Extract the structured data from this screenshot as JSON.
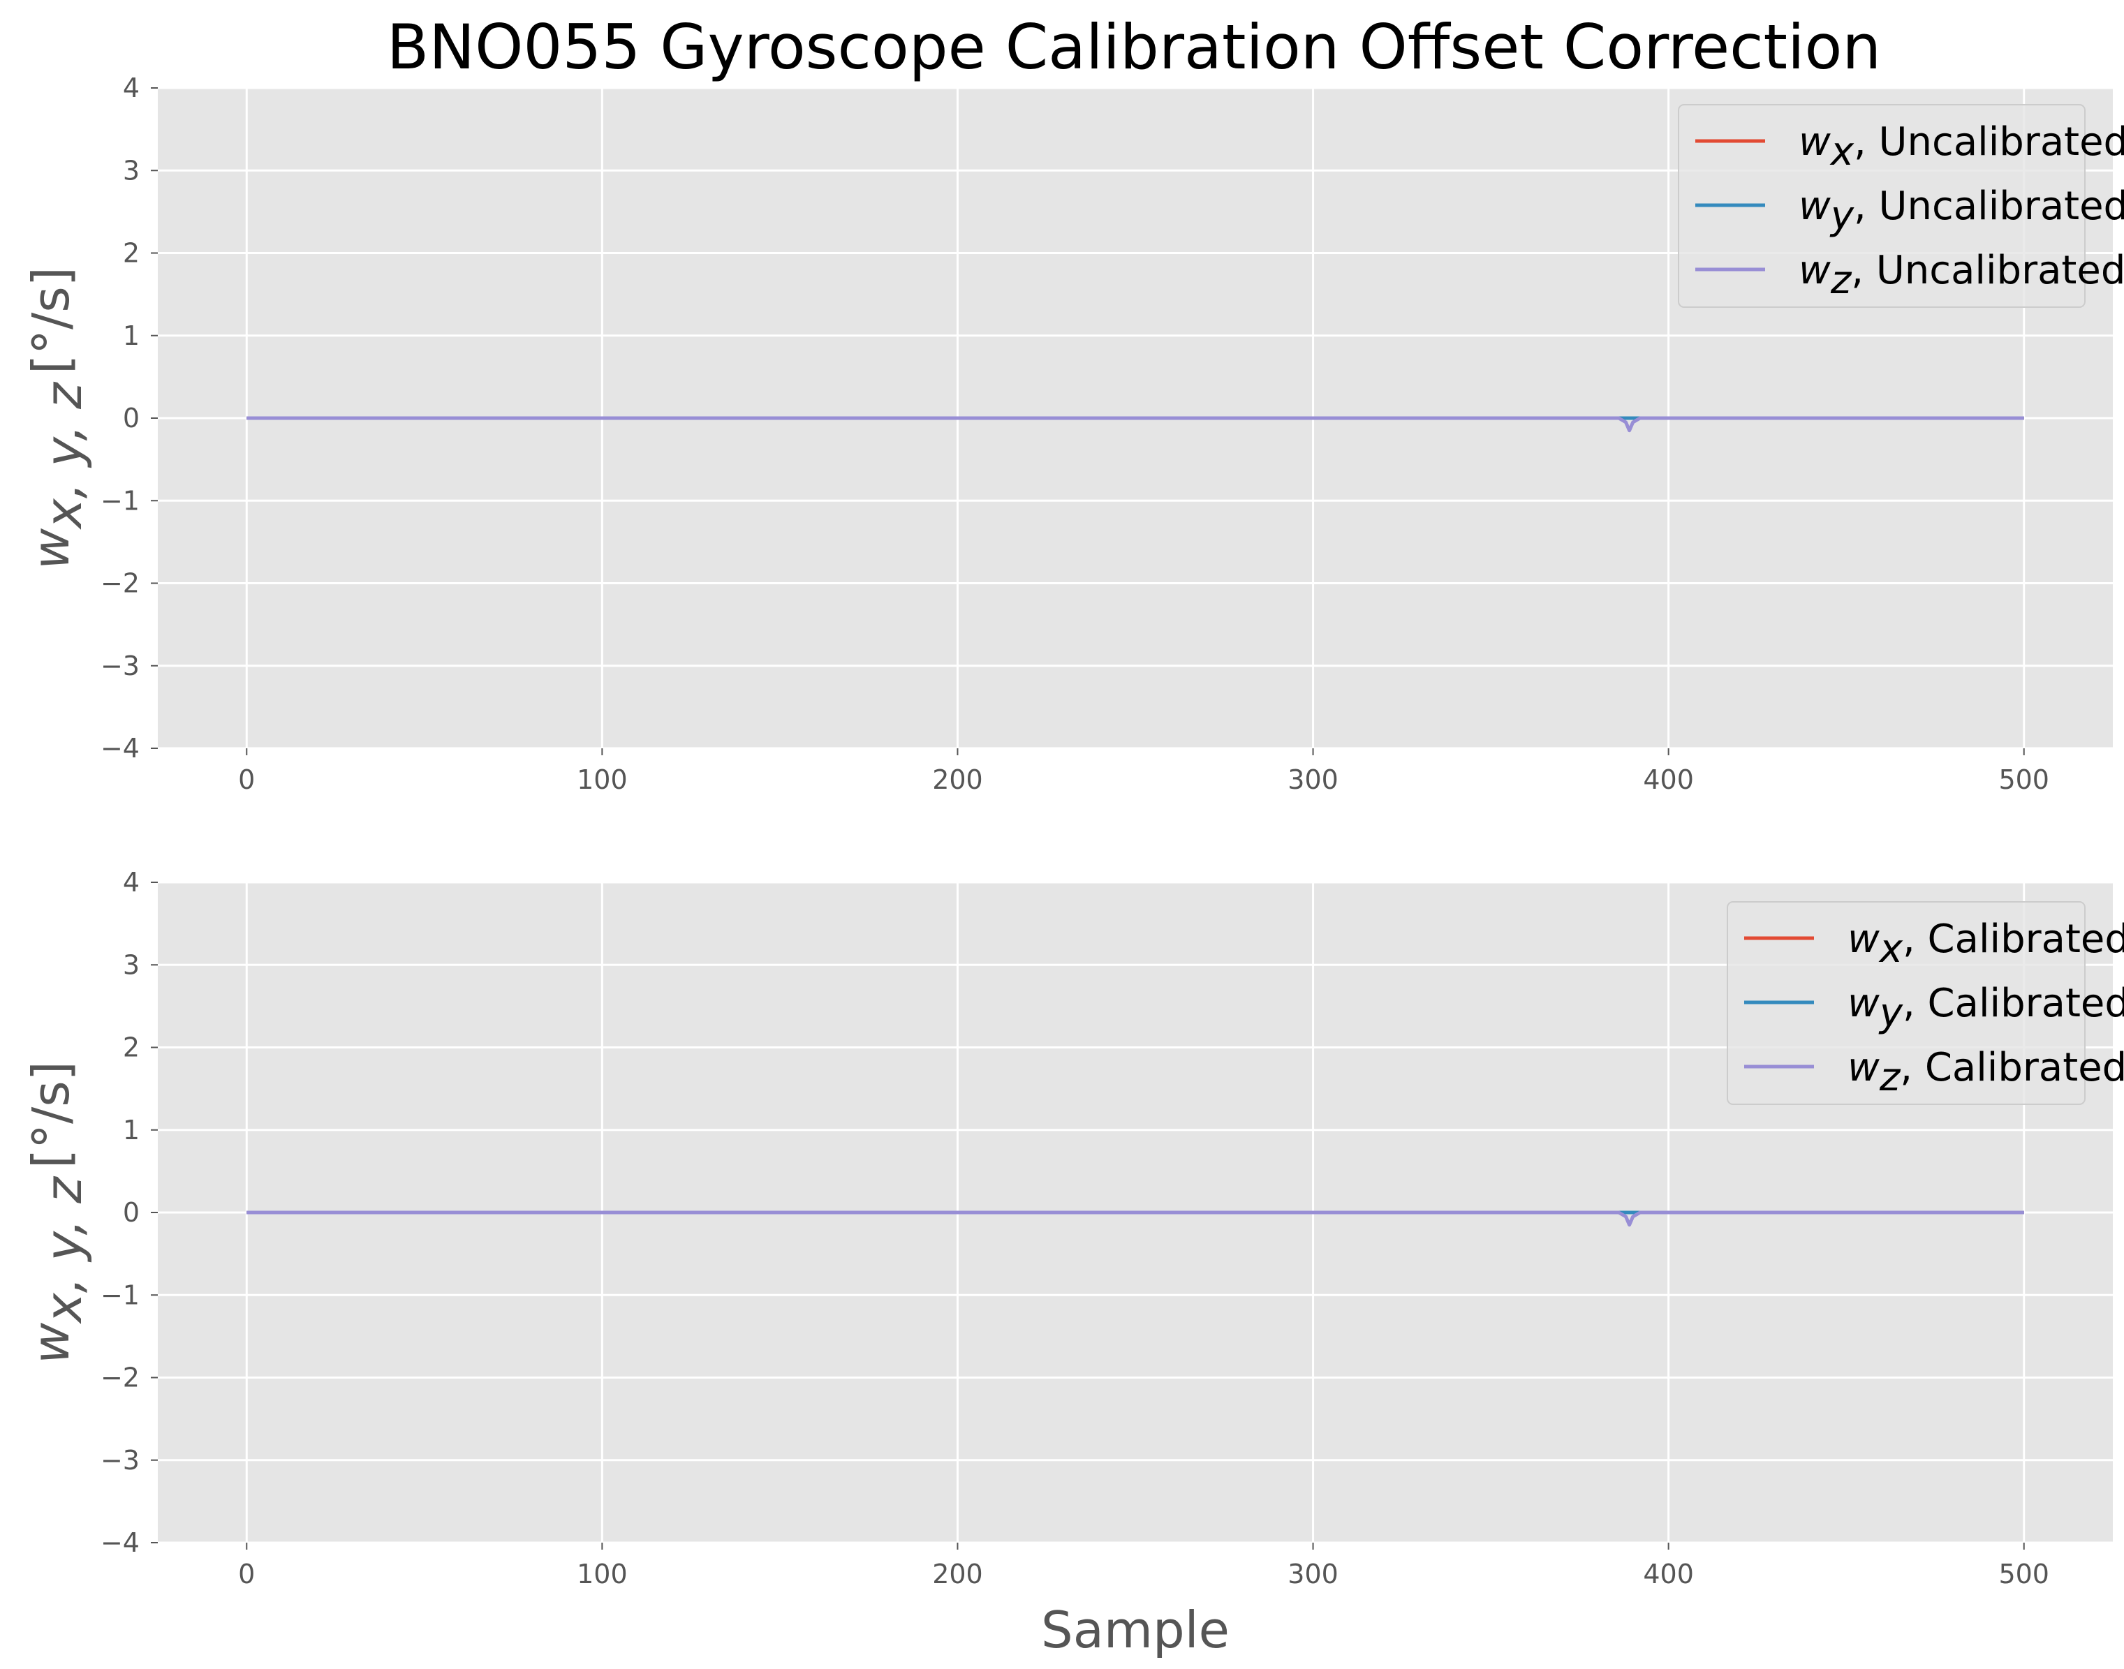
{
  "figure": {
    "title": "BNO055 Gyroscope Calibration Offset Correction"
  },
  "colors": {
    "wx": "#E24A33",
    "wy": "#348ABD",
    "wz": "#988ED5",
    "plot_bg": "#E5E5E5",
    "grid": "#FFFFFF",
    "tick_text": "#555555"
  },
  "chart_data": [
    {
      "type": "line",
      "title": "",
      "xlabel": "",
      "ylabel_base": "w",
      "ylabel_sub": "x, y, z",
      "ylabel_unit": "[°/s]",
      "xlim": [
        -25,
        525
      ],
      "ylim": [
        -4,
        4
      ],
      "xticks": [
        0,
        100,
        200,
        300,
        400,
        500
      ],
      "yticks": [
        -4,
        -3,
        -2,
        -1,
        0,
        1,
        2,
        3,
        4
      ],
      "ytick_labels": [
        "−4",
        "−3",
        "−2",
        "−1",
        "0",
        "1",
        "2",
        "3",
        "4"
      ],
      "grid": true,
      "legend_position": "top-right",
      "legend_name": "Uncalibrated",
      "series": [
        {
          "key": "wx",
          "sub": "x",
          "name": "Uncalibrated",
          "baseline": 0,
          "points": [
            [
              0,
              0
            ],
            [
              500,
              0
            ]
          ]
        },
        {
          "key": "wy",
          "sub": "y",
          "name": "Uncalibrated",
          "baseline": 0,
          "points": [
            [
              0,
              0
            ],
            [
              500,
              0
            ]
          ]
        },
        {
          "key": "wz",
          "sub": "z",
          "name": "Uncalibrated",
          "baseline": 0,
          "points": [
            [
              0,
              0
            ],
            [
              386,
              0
            ],
            [
              388,
              -0.05
            ],
            [
              389,
              -0.15
            ],
            [
              390,
              -0.05
            ],
            [
              392,
              0
            ],
            [
              500,
              0
            ]
          ]
        }
      ]
    },
    {
      "type": "line",
      "title": "",
      "xlabel": "Sample",
      "ylabel_base": "w",
      "ylabel_sub": "x, y, z",
      "ylabel_unit": "[°/s]",
      "xlim": [
        -25,
        525
      ],
      "ylim": [
        -4,
        4
      ],
      "xticks": [
        0,
        100,
        200,
        300,
        400,
        500
      ],
      "yticks": [
        -4,
        -3,
        -2,
        -1,
        0,
        1,
        2,
        3,
        4
      ],
      "ytick_labels": [
        "−4",
        "−3",
        "−2",
        "−1",
        "0",
        "1",
        "2",
        "3",
        "4"
      ],
      "grid": true,
      "legend_position": "top-right",
      "legend_name": "Calibrated",
      "series": [
        {
          "key": "wx",
          "sub": "x",
          "name": "Calibrated",
          "baseline": 0,
          "points": [
            [
              0,
              0
            ],
            [
              500,
              0
            ]
          ]
        },
        {
          "key": "wy",
          "sub": "y",
          "name": "Calibrated",
          "baseline": 0,
          "points": [
            [
              0,
              0
            ],
            [
              500,
              0
            ]
          ]
        },
        {
          "key": "wz",
          "sub": "z",
          "name": "Calibrated",
          "baseline": 0,
          "points": [
            [
              0,
              0
            ],
            [
              386,
              0
            ],
            [
              388,
              -0.05
            ],
            [
              389,
              -0.15
            ],
            [
              390,
              -0.05
            ],
            [
              392,
              0
            ],
            [
              500,
              0
            ]
          ]
        }
      ]
    }
  ]
}
